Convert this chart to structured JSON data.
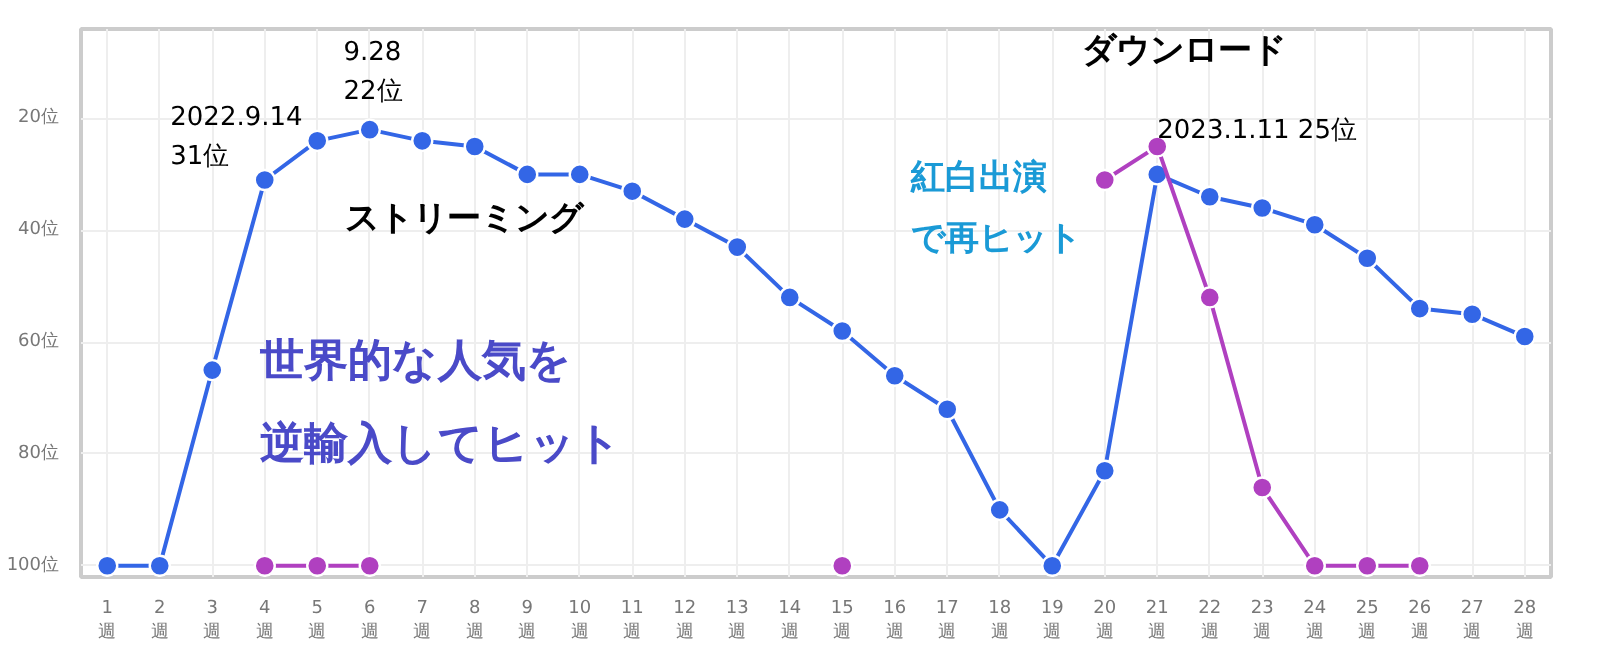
{
  "chart_data": {
    "type": "line",
    "categories": [
      "1\n週",
      "2\n週",
      "3\n週",
      "4\n週",
      "5\n週",
      "6\n週",
      "7\n週",
      "8\n週",
      "9\n週",
      "10\n週",
      "11\n週",
      "12\n週",
      "13\n週",
      "14\n週",
      "15\n週",
      "16\n週",
      "17\n週",
      "18\n週",
      "19\n週",
      "20\n週",
      "21\n週",
      "22\n週",
      "23\n週",
      "24\n週",
      "25\n週",
      "26\n週",
      "27\n週",
      "28\n週"
    ],
    "series": [
      {
        "name": "ストリーミング",
        "color": "#3366e6",
        "values": [
          100,
          100,
          65,
          31,
          24,
          22,
          24,
          25,
          30,
          30,
          33,
          38,
          43,
          52,
          58,
          66,
          72,
          90,
          100,
          83,
          30,
          34,
          36,
          39,
          45,
          54,
          55,
          59
        ]
      },
      {
        "name": "ダウンロード",
        "color": "#b040c0",
        "values": [
          null,
          null,
          null,
          100,
          100,
          100,
          null,
          null,
          null,
          null,
          null,
          null,
          null,
          null,
          100,
          null,
          null,
          null,
          null,
          31,
          25,
          52,
          86,
          100,
          100,
          100,
          null,
          null
        ]
      }
    ],
    "ylim": [
      102,
      4
    ],
    "yticks": [
      {
        "value": 20,
        "label": "20位"
      },
      {
        "value": 40,
        "label": "40位"
      },
      {
        "value": 60,
        "label": "60位"
      },
      {
        "value": 80,
        "label": "80位"
      },
      {
        "value": 100,
        "label": "100位"
      }
    ],
    "grid": true,
    "marker": "circle",
    "line_style": "solid",
    "legend": false,
    "annotations": [
      {
        "text": "2022.9.14\n31位",
        "x": "4\n週",
        "y": 31
      },
      {
        "text": "9.28\n22位",
        "x": "6\n週",
        "y": 22
      },
      {
        "text": "2023.1.11 25位",
        "x": "21\n週",
        "y": 25
      },
      "世界的な人気を",
      "逆輸入してヒット",
      "紅白出演",
      "で再ヒット"
    ]
  }
}
